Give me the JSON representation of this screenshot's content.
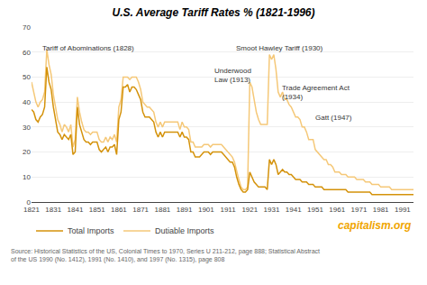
{
  "chart_data": {
    "type": "line",
    "title": "U.S. Average Tariff Rates % (1821-1996)",
    "x": [
      1821,
      1822,
      1823,
      1824,
      1825,
      1826,
      1827,
      1828,
      1829,
      1830,
      1831,
      1832,
      1833,
      1834,
      1835,
      1836,
      1837,
      1838,
      1839,
      1840,
      1841,
      1842,
      1843,
      1844,
      1845,
      1846,
      1847,
      1848,
      1849,
      1850,
      1851,
      1852,
      1853,
      1854,
      1855,
      1856,
      1857,
      1858,
      1859,
      1860,
      1861,
      1862,
      1863,
      1864,
      1865,
      1866,
      1867,
      1868,
      1869,
      1870,
      1871,
      1872,
      1873,
      1874,
      1875,
      1876,
      1877,
      1878,
      1879,
      1880,
      1881,
      1882,
      1883,
      1884,
      1885,
      1886,
      1887,
      1888,
      1889,
      1890,
      1891,
      1892,
      1893,
      1894,
      1895,
      1896,
      1897,
      1898,
      1899,
      1900,
      1901,
      1902,
      1903,
      1904,
      1905,
      1906,
      1907,
      1908,
      1909,
      1910,
      1911,
      1912,
      1913,
      1914,
      1915,
      1916,
      1917,
      1918,
      1919,
      1920,
      1921,
      1922,
      1923,
      1924,
      1925,
      1926,
      1927,
      1928,
      1929,
      1930,
      1931,
      1932,
      1933,
      1934,
      1935,
      1936,
      1937,
      1938,
      1939,
      1940,
      1941,
      1942,
      1943,
      1944,
      1945,
      1946,
      1947,
      1948,
      1949,
      1950,
      1951,
      1952,
      1953,
      1954,
      1955,
      1956,
      1957,
      1958,
      1959,
      1960,
      1961,
      1962,
      1963,
      1964,
      1965,
      1966,
      1967,
      1968,
      1969,
      1970,
      1971,
      1972,
      1973,
      1974,
      1975,
      1976,
      1977,
      1978,
      1979,
      1980,
      1981,
      1982,
      1983,
      1984,
      1985,
      1986,
      1987,
      1988,
      1989,
      1990,
      1991,
      1992,
      1993,
      1994,
      1995,
      1996
    ],
    "series": [
      {
        "name": "Dutiable Imports",
        "color": "#f5c878",
        "values": [
          48,
          44,
          40,
          38,
          40,
          41,
          44,
          61,
          55,
          51,
          43,
          38,
          33,
          31,
          28,
          31,
          30,
          28,
          31,
          22,
          25,
          42,
          36,
          32,
          29,
          28,
          28,
          27,
          28,
          28,
          28,
          25,
          24,
          24,
          26,
          24,
          26,
          25,
          27,
          24,
          38,
          41,
          50,
          50,
          50,
          49,
          50,
          50,
          50,
          48,
          45,
          40,
          39,
          38,
          38,
          37,
          36,
          32,
          30,
          32,
          30,
          32,
          32,
          32,
          32,
          32,
          32,
          32,
          29,
          32,
          30,
          30,
          29,
          24,
          24,
          22,
          22,
          22,
          22,
          23,
          23,
          23,
          22,
          23,
          23,
          23,
          23,
          23,
          22,
          21,
          20,
          19,
          18,
          16,
          12,
          9,
          6,
          5,
          5,
          6,
          48,
          46,
          41,
          36,
          33,
          31,
          31,
          31,
          31,
          59,
          57,
          59,
          53,
          44,
          42,
          44,
          41,
          41,
          39,
          38,
          36,
          34,
          34,
          33,
          30,
          30,
          28,
          25,
          25,
          25,
          21,
          20,
          19,
          18,
          17,
          17,
          15,
          15,
          14,
          12,
          12,
          12,
          11,
          11,
          11,
          10,
          10,
          10,
          10,
          9,
          9,
          9,
          9,
          8,
          8,
          8,
          7,
          7,
          7,
          7,
          6,
          6,
          6,
          6,
          6,
          5,
          5,
          5,
          5,
          5,
          5,
          5,
          5,
          5,
          5,
          5
        ]
      },
      {
        "name": "Total Imports",
        "color": "#d4920a",
        "values": [
          37,
          36,
          33,
          32,
          34,
          35,
          38,
          54,
          48,
          45,
          38,
          33,
          28,
          27,
          25,
          27,
          26,
          25,
          27,
          19,
          20,
          38,
          31,
          28,
          25,
          24,
          24,
          23,
          24,
          24,
          24,
          21,
          20,
          21,
          22,
          20,
          22,
          22,
          23,
          19,
          33,
          36,
          46,
          46,
          47,
          44,
          46,
          46,
          45,
          43,
          41,
          36,
          34,
          34,
          34,
          33,
          32,
          28,
          26,
          28,
          26,
          28,
          28,
          28,
          28,
          28,
          28,
          28,
          26,
          28,
          26,
          26,
          25,
          20,
          20,
          18,
          18,
          18,
          19,
          20,
          20,
          20,
          19,
          20,
          20,
          20,
          20,
          20,
          19,
          18,
          17,
          16,
          16,
          14,
          10,
          7,
          5,
          4,
          4,
          5,
          12,
          10,
          8,
          7,
          6,
          6,
          6,
          6,
          5,
          17,
          15,
          17,
          15,
          11,
          12,
          13,
          12,
          12,
          11,
          11,
          10,
          9,
          9,
          9,
          8,
          8,
          8,
          7,
          7,
          7,
          6,
          6,
          6,
          6,
          5,
          5,
          5,
          5,
          5,
          5,
          5,
          5,
          5,
          5,
          5,
          4,
          4,
          4,
          4,
          4,
          4,
          4,
          4,
          4,
          4,
          4,
          3,
          3,
          3,
          3,
          3,
          3,
          3,
          3,
          3,
          3,
          3,
          3,
          3,
          3,
          3,
          3,
          3,
          3,
          3,
          3
        ]
      }
    ],
    "xlim": [
      1821,
      1996
    ],
    "xticks": [
      1821,
      1831,
      1841,
      1851,
      1861,
      1871,
      1881,
      1891,
      1901,
      1911,
      1921,
      1931,
      1941,
      1951,
      1961,
      1971,
      1981,
      1991
    ],
    "ylim": [
      0,
      70
    ],
    "yticks": [
      0,
      10,
      20,
      30,
      40,
      50,
      60,
      70
    ],
    "grid": true,
    "legend": "bottom",
    "annotations": [
      {
        "text": "Tariff of Abominations (1828)",
        "x": 1825,
        "y": 64
      },
      {
        "text": "Smoot Hawley Tariff (1930)",
        "x": 1914,
        "y": 64
      },
      {
        "text": "Underwood\nLaw (1913)",
        "x": 1904,
        "y": 55
      },
      {
        "text": "Trade Agreement Act\n(1934)",
        "x": 1935,
        "y": 48
      },
      {
        "text": "Gatt (1947)",
        "x": 1950,
        "y": 36
      }
    ],
    "watermark": "capitalism.org",
    "source": "Source: Historical Statistics of the US, Colonial Times to 1970, Series U 211-212, page 888; Statistical Abstract of the US 1990 (No. 1412), 1991 (No. 1410), and 1997 (No. 1315), page 808"
  }
}
